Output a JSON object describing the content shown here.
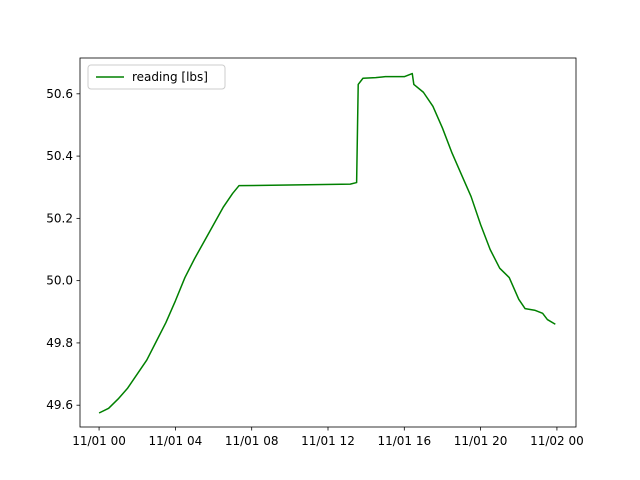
{
  "chart_data": {
    "type": "line",
    "title": "",
    "xlabel": "",
    "ylabel": "",
    "legend": {
      "placement": "top-left"
    },
    "grid": false,
    "xlim": [
      "10-31 23:00",
      "11-02 01:00"
    ],
    "ylim": [
      49.53,
      50.715
    ],
    "x_ticks": [
      {
        "value": "11-01 00:00",
        "label": "11/01 00"
      },
      {
        "value": "11-01 04:00",
        "label": "11/01 04"
      },
      {
        "value": "11-01 08:00",
        "label": "11/01 08"
      },
      {
        "value": "11-01 12:00",
        "label": "11/01 12"
      },
      {
        "value": "11-01 16:00",
        "label": "11/01 16"
      },
      {
        "value": "11-01 20:00",
        "label": "11/01 20"
      },
      {
        "value": "11-02 00:00",
        "label": "11/02 00"
      }
    ],
    "y_ticks": [
      {
        "value": 49.6,
        "label": "49.6"
      },
      {
        "value": 49.8,
        "label": "49.8"
      },
      {
        "value": 50.0,
        "label": "50.0"
      },
      {
        "value": 50.2,
        "label": "50.2"
      },
      {
        "value": 50.4,
        "label": "50.4"
      },
      {
        "value": 50.6,
        "label": "50.6"
      }
    ],
    "series": [
      {
        "name": "reading [lbs]",
        "color": "#008000",
        "points": [
          [
            "11-01 00:00",
            49.575
          ],
          [
            "11-01 00:30",
            49.59
          ],
          [
            "11-01 01:00",
            49.62
          ],
          [
            "11-01 01:30",
            49.655
          ],
          [
            "11-01 02:00",
            49.7
          ],
          [
            "11-01 02:30",
            49.745
          ],
          [
            "11-01 03:00",
            49.805
          ],
          [
            "11-01 03:30",
            49.865
          ],
          [
            "11-01 04:00",
            49.935
          ],
          [
            "11-01 04:30",
            50.01
          ],
          [
            "11-01 05:00",
            50.07
          ],
          [
            "11-01 05:30",
            50.125
          ],
          [
            "11-01 06:00",
            50.18
          ],
          [
            "11-01 06:30",
            50.235
          ],
          [
            "11-01 07:00",
            50.28
          ],
          [
            "11-01 07:20",
            50.305
          ],
          [
            "11-01 13:10",
            50.31
          ],
          [
            "11-01 13:30",
            50.315
          ],
          [
            "11-01 13:35",
            50.63
          ],
          [
            "11-01 13:50",
            50.65
          ],
          [
            "11-01 14:30",
            50.652
          ],
          [
            "11-01 15:00",
            50.655
          ],
          [
            "11-01 16:00",
            50.655
          ],
          [
            "11-01 16:25",
            50.665
          ],
          [
            "11-01 16:30",
            50.63
          ],
          [
            "11-01 17:00",
            50.605
          ],
          [
            "11-01 17:30",
            50.56
          ],
          [
            "11-01 18:00",
            50.49
          ],
          [
            "11-01 18:30",
            50.41
          ],
          [
            "11-01 19:00",
            50.34
          ],
          [
            "11-01 19:30",
            50.27
          ],
          [
            "11-01 20:00",
            50.18
          ],
          [
            "11-01 20:30",
            50.1
          ],
          [
            "11-01 21:00",
            50.04
          ],
          [
            "11-01 21:30",
            50.01
          ],
          [
            "11-01 22:00",
            49.94
          ],
          [
            "11-01 22:20",
            49.91
          ],
          [
            "11-01 22:50",
            49.905
          ],
          [
            "11-01 23:15",
            49.895
          ],
          [
            "11-01 23:30",
            49.875
          ],
          [
            "11-01 23:55",
            49.86
          ]
        ]
      }
    ]
  }
}
